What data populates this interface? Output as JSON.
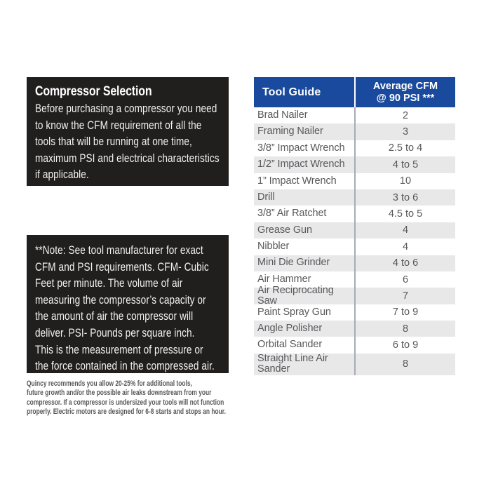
{
  "colors": {
    "header_blue": "#1a4a9d",
    "box_background": "#211e1e",
    "alt_row_gray": "#e8e8e9",
    "row_text_gray": "#57585b",
    "column_divider": "#a5abb5",
    "fine_print_text": "#3a3a3a"
  },
  "info_box": {
    "title": "Compressor Selection",
    "lines": [
      "Before purchasing a compressor you need",
      "to know the CFM requirement of all the",
      "tools that will be running at one time,",
      "maximum PSI and electrical characteristics",
      "if applicable."
    ]
  },
  "note_box": {
    "lines": [
      "**Note: See tool manufacturer for exact",
      "CFM and PSI requirements. CFM- Cubic",
      "Feet per minute. The volume of air",
      "measuring the compressor’s capacity or",
      "the amount of air the compressor will",
      "deliver. PSI- Pounds per square inch.",
      "This is the measurement of pressure or",
      "the force contained in the compressed air."
    ]
  },
  "fine_print": {
    "lines": [
      "Quincy recommends you allow 20-25% for additional tools,",
      "future growth and/or the possible air leaks downstream from your",
      "compressor. If a compressor is undersized your tools will not function",
      "properly. Electric motors are designed for 6-8 starts and stops an hour."
    ]
  },
  "table": {
    "header_left": "Tool Guide",
    "header_right_lines": [
      "Average CFM",
      "@ 90 PSI ***"
    ],
    "rows": [
      {
        "tool": "Brad Nailer",
        "cfm": "2"
      },
      {
        "tool": "Framing Nailer",
        "cfm": "3"
      },
      {
        "tool": "3/8” Impact Wrench",
        "cfm": "2.5 to 4"
      },
      {
        "tool": "1/2” Impact Wrench",
        "cfm": "4 to 5"
      },
      {
        "tool": "1” Impact Wrench",
        "cfm": "10"
      },
      {
        "tool": "Drill",
        "cfm": "3 to 6"
      },
      {
        "tool": "3/8” Air Ratchet",
        "cfm": "4.5 to 5"
      },
      {
        "tool": "Grease Gun",
        "cfm": "4"
      },
      {
        "tool": "Nibbler",
        "cfm": "4"
      },
      {
        "tool": "Mini Die Grinder",
        "cfm": "4 to 6"
      },
      {
        "tool": "Air Hammer",
        "cfm": "6"
      },
      {
        "tool": "Air Reciprocating Saw",
        "cfm": "7"
      },
      {
        "tool": "Paint Spray Gun",
        "cfm": "7 to 9"
      },
      {
        "tool": "Angle Polisher",
        "cfm": "8"
      },
      {
        "tool": "Orbital Sander",
        "cfm": "6 to 9"
      },
      {
        "tool": "Straight Line Air Sander",
        "cfm": "8"
      }
    ]
  }
}
